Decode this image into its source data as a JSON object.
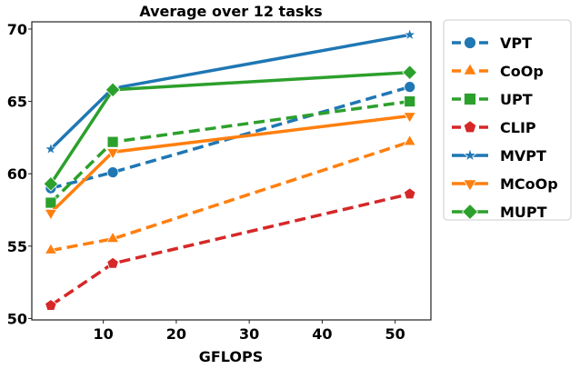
{
  "chart_data": {
    "type": "line",
    "title": "Average over 12 tasks",
    "xlabel": "GFLOPS",
    "ylabel": "",
    "xlim": [
      0.2,
      54.9
    ],
    "ylim": [
      49.9,
      70.5
    ],
    "xticks": [
      10,
      20,
      30,
      40,
      50
    ],
    "yticks": [
      50,
      55,
      60,
      65,
      70
    ],
    "grid": false,
    "legend_position": "outside-right-top",
    "x": [
      2.8,
      11.3,
      52.0
    ],
    "series": [
      {
        "name": "VPT",
        "color": "#1f77b4",
        "dash": true,
        "marker": "circle",
        "values": [
          59.0,
          60.1,
          66.0
        ]
      },
      {
        "name": "CoOp",
        "color": "#ff7f0e",
        "dash": true,
        "marker": "triangle-up",
        "values": [
          54.7,
          55.5,
          62.2
        ]
      },
      {
        "name": "UPT",
        "color": "#2ca02c",
        "dash": true,
        "marker": "square",
        "values": [
          58.0,
          62.2,
          65.0
        ]
      },
      {
        "name": "CLIP",
        "color": "#d62728",
        "dash": true,
        "marker": "pentagon",
        "values": [
          50.9,
          53.8,
          58.6
        ]
      },
      {
        "name": "MVPT",
        "color": "#1f77b4",
        "dash": false,
        "marker": "star",
        "values": [
          61.7,
          65.9,
          69.6
        ]
      },
      {
        "name": "MCoOp",
        "color": "#ff7f0e",
        "dash": false,
        "marker": "triangle-down",
        "values": [
          57.3,
          61.5,
          64.0
        ]
      },
      {
        "name": "MUPT",
        "color": "#2ca02c",
        "dash": false,
        "marker": "diamond",
        "values": [
          59.3,
          65.8,
          67.0
        ]
      }
    ]
  }
}
